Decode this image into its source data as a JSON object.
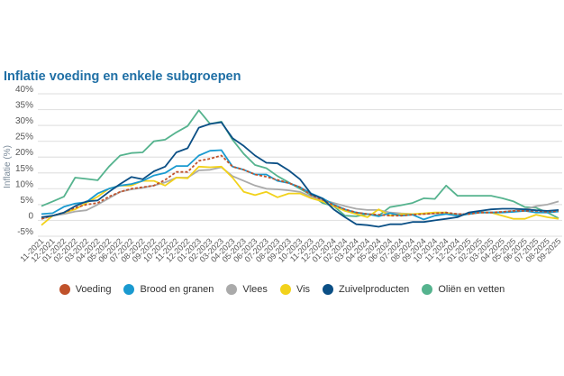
{
  "chart_data": {
    "type": "line",
    "title": "Inflatie voeding en enkele subgroepen",
    "xlabel": "",
    "ylabel": "Inflatie (%)",
    "ylim": [
      -5,
      40
    ],
    "yticks": [
      -5,
      0,
      5,
      10,
      15,
      20,
      25,
      30,
      35,
      40
    ],
    "ytick_labels": [
      "-5%",
      "0",
      "5%",
      "10%",
      "15%",
      "20%",
      "25%",
      "30%",
      "35%",
      "40%"
    ],
    "grid": true,
    "legend_position": "bottom",
    "x": [
      "11-2021",
      "12-2021",
      "01-2022",
      "02-2022",
      "03-2022",
      "04-2022",
      "05-2022",
      "06-2022",
      "07-2022",
      "08-2022",
      "09-2022",
      "10-2022",
      "11-2022",
      "12-2022",
      "01-2023",
      "02-2023",
      "03-2023",
      "04-2023",
      "05-2023",
      "06-2023",
      "07-2023",
      "08-2023",
      "09-2023",
      "10-2023",
      "11-2023",
      "12-2023",
      "01-2024",
      "02-2024",
      "03-2024",
      "04-2024",
      "05-2024",
      "06-2024",
      "07-2024",
      "08-2024",
      "09-2024",
      "10-2024",
      "11-2024",
      "12-2024",
      "01-2025",
      "02-2025",
      "03-2025",
      "04-2025",
      "05-2025",
      "06-2025",
      "07-2025",
      "08-2025",
      "09-2025"
    ],
    "series": [
      {
        "name": "Voeding",
        "color": "#c0522b",
        "dashed": true,
        "values": [
          0.5,
          1.5,
          2.5,
          4,
          5,
          5.5,
          7.5,
          9,
          10,
          10.5,
          11,
          12.8,
          15.3,
          15.3,
          18.8,
          19.5,
          20.5,
          17,
          16,
          14.5,
          13.8,
          12.8,
          11.8,
          10.5,
          8,
          6.5,
          4.8,
          3.5,
          2.5,
          2,
          1.8,
          1.5,
          1.5,
          1.8,
          2,
          2.2,
          2.5,
          2,
          2,
          2.5,
          2.5,
          2.7,
          3,
          3,
          3,
          2.7,
          3
        ]
      },
      {
        "name": "Brood en granen",
        "color": "#1a9ad0",
        "values": [
          2,
          2.3,
          4.3,
          5.3,
          5.8,
          8.5,
          10,
          11,
          11.5,
          12.5,
          14.2,
          15,
          17.2,
          17.2,
          20.5,
          22,
          22.2,
          17,
          16,
          14.5,
          14.5,
          12.5,
          11.8,
          10.5,
          8.5,
          7,
          5,
          3.5,
          2.5,
          2,
          1.3,
          2.3,
          1.5,
          1.8,
          0.3,
          1.5,
          2,
          1.5,
          2,
          2.5,
          2.5,
          2.5,
          2.7,
          3,
          2.5,
          2.5,
          2.8
        ]
      },
      {
        "name": "Vlees",
        "color": "#aaaaaa",
        "values": [
          0.5,
          1.5,
          2,
          2.8,
          3.2,
          5,
          7,
          9,
          9.8,
          10.3,
          11,
          12,
          13.5,
          13.5,
          15.8,
          16,
          16.8,
          14,
          12.5,
          11,
          10,
          9.8,
          9.5,
          9,
          7.5,
          6.5,
          5.5,
          4.5,
          3.7,
          3.3,
          3.3,
          2.5,
          2.2,
          2,
          2,
          2.2,
          2.3,
          2,
          2,
          2.5,
          2.5,
          2.7,
          3,
          3.5,
          4.5,
          5,
          6
        ]
      },
      {
        "name": "Vis",
        "color": "#f2d21b",
        "values": [
          -1.5,
          1.5,
          2.5,
          3.5,
          5.5,
          7.5,
          10,
          11,
          11,
          12.5,
          12.5,
          11,
          13.5,
          13.3,
          17,
          16.8,
          17,
          13.5,
          9,
          8,
          9,
          7.3,
          8.5,
          8.5,
          7,
          6,
          4.5,
          3,
          2,
          1,
          3.5,
          1.5,
          2,
          2,
          2.2,
          2.5,
          2.5,
          1.5,
          2,
          2.5,
          2.5,
          1.5,
          0.5,
          0.5,
          1.8,
          1,
          0.5
        ]
      },
      {
        "name": "Zuivelproducten",
        "color": "#0b4f85",
        "values": [
          1,
          1.5,
          2.5,
          4.5,
          6,
          6.3,
          9,
          11.5,
          13.7,
          13,
          15.5,
          17,
          21.5,
          22.8,
          29.3,
          30.5,
          31,
          26,
          23.5,
          20.5,
          18.2,
          18,
          15.8,
          13,
          8.3,
          6.9,
          3.5,
          1,
          -1.2,
          -1.5,
          -2,
          -1.2,
          -1.2,
          -0.5,
          -0.5,
          0,
          0.5,
          1,
          2.5,
          3,
          3.5,
          3.7,
          3.7,
          3.5,
          3.2,
          3,
          3.3
        ]
      },
      {
        "name": "Oliën en vetten",
        "color": "#55b38e",
        "values": [
          4.5,
          6,
          7.5,
          13.5,
          13.1,
          12.7,
          17,
          20.5,
          21.3,
          21.5,
          25,
          25.5,
          27.8,
          29.8,
          34.8,
          30.5,
          31.2,
          25.5,
          21,
          17.5,
          16.5,
          14,
          12,
          10,
          8,
          5.5,
          4.5,
          1.5,
          1.3,
          2,
          1.5,
          4.2,
          4.8,
          5.5,
          7,
          6.8,
          11,
          7.8,
          7.8,
          7.8,
          7.8,
          7,
          6,
          4.2,
          4,
          2.5,
          0.7
        ]
      }
    ]
  }
}
